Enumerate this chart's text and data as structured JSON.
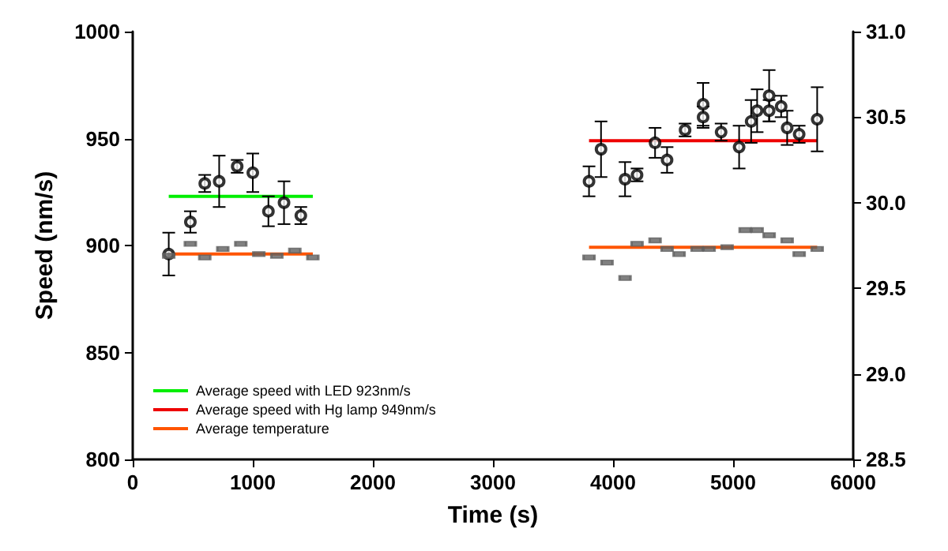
{
  "chart_data": {
    "type": "scatter",
    "xlabel": "Time (s)",
    "ylabel": "Speed (nm/s)",
    "xlim": [
      0,
      6000
    ],
    "xticks": [
      0,
      1000,
      2000,
      3000,
      4000,
      5000,
      6000
    ],
    "ylim": [
      800,
      1000
    ],
    "yticks": [
      800,
      850,
      900,
      950,
      1000
    ],
    "y2lim": [
      28.5,
      31
    ],
    "y2ticks": [
      28.5,
      {
        "value": 29,
        "label": "29.0"
      },
      29.5,
      {
        "value": 30,
        "label": "30.0"
      },
      30.5,
      {
        "value": 31,
        "label": "31.0"
      }
    ],
    "grid": false,
    "legend": "bottom left",
    "series": [
      {
        "marker": "circle",
        "color": "#000000",
        "x": [
          300,
          480,
          600,
          720,
          870,
          1000,
          1130,
          1260,
          1400,
          3800,
          3900,
          4100,
          4200,
          4350,
          4450,
          4600,
          4750,
          4750,
          4900,
          5050,
          5150,
          5200,
          5300,
          5300,
          5400,
          5450,
          5550,
          5700
        ],
        "values": [
          896,
          911,
          929,
          930,
          937,
          934,
          916,
          920,
          914,
          930,
          945,
          931,
          933,
          948,
          940,
          954,
          960,
          966,
          953,
          946,
          958,
          963,
          970,
          963,
          965,
          955,
          952,
          959
        ],
        "errors": [
          10,
          5,
          4,
          12,
          3,
          9,
          7,
          10,
          4,
          7,
          13,
          8,
          3,
          7,
          6,
          3,
          5,
          10,
          4,
          10,
          10,
          10,
          12,
          5,
          5,
          8,
          4,
          15
        ]
      },
      {
        "type": "scatter",
        "marker": "square",
        "color": "#606060",
        "axis": "y2",
        "x": [
          300,
          480,
          600,
          750,
          900,
          1050,
          1200,
          1350,
          1500,
          3800,
          3950,
          4100,
          4200,
          4350,
          4450,
          4550,
          4700,
          4800,
          4950,
          5100,
          5200,
          5300,
          5450,
          5550,
          5700
        ],
        "values": [
          29.69,
          29.76,
          29.68,
          29.73,
          29.76,
          29.7,
          29.69,
          29.72,
          29.68,
          29.68,
          29.65,
          29.56,
          29.76,
          29.78,
          29.73,
          29.7,
          29.73,
          29.73,
          29.74,
          29.84,
          29.84,
          29.81,
          29.78,
          29.7,
          29.73
        ]
      },
      {
        "type": "line",
        "name": "Average speed with LED 923nm/s",
        "color": "#00ee00",
        "marker": "none",
        "x": [
          300,
          1500
        ],
        "values": [
          923,
          923
        ]
      },
      {
        "type": "line",
        "name": "Average speed with Hg lamp 949nm/s",
        "color": "#ee0000",
        "marker": "none",
        "x": [
          3800,
          5700
        ],
        "values": [
          949,
          949
        ]
      },
      {
        "type": "line",
        "name": "Average temperature",
        "color": "#ff5500",
        "marker": "none",
        "axis": "y2",
        "x": [
          300,
          1500,
          2600,
          3800,
          5700
        ],
        "values": [
          29.7,
          29.7,
          null,
          29.74,
          29.74
        ]
      }
    ]
  }
}
